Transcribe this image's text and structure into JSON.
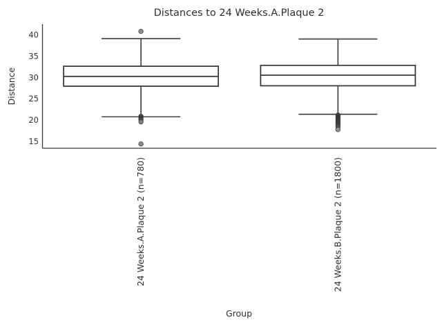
{
  "figure": {
    "background": "#ffffff",
    "text_color": "#2f2f2f",
    "line_color": "#3b3b3b"
  },
  "chart_data": {
    "type": "boxplot",
    "title": "Distances to 24 Weeks.A.Plaque 2",
    "xlabel": "Group",
    "ylabel": "Distance",
    "ylim": [
      13.4,
      42.6
    ],
    "yticks": [
      15,
      20,
      25,
      30,
      35,
      40
    ],
    "grid": false,
    "legend": null,
    "box_fill": "#ffffff",
    "box_edge_color": "#3b3b3b",
    "groups": [
      {
        "label": "24 Weeks.A.Plaque 2 (n=780)",
        "n": 780,
        "q1": 28.0,
        "median": 30.3,
        "q3": 32.7,
        "whisker_low": 20.8,
        "whisker_high": 39.2,
        "outliers": [
          {
            "value": 40.9,
            "color": "#8e8e8e"
          },
          {
            "value": 20.9,
            "color": "#4a4a4a"
          },
          {
            "value": 20.5,
            "color": "#3d3d3d"
          },
          {
            "value": 20.1,
            "color": "#474747"
          },
          {
            "value": 19.6,
            "color": "#7d7d7d"
          },
          {
            "value": 14.4,
            "color": "#8e8e8e"
          }
        ]
      },
      {
        "label": "24 Weeks.B.Plaque 2 (n=1800)",
        "n": 1800,
        "q1": 28.1,
        "median": 30.6,
        "q3": 32.9,
        "whisker_low": 21.4,
        "whisker_high": 39.1,
        "outliers": [
          {
            "value": 21.2,
            "color": "#3d3d3d"
          },
          {
            "value": 20.8,
            "color": "#343434"
          },
          {
            "value": 20.4,
            "color": "#343434"
          },
          {
            "value": 20.0,
            "color": "#383838"
          },
          {
            "value": 19.6,
            "color": "#3d3d3d"
          },
          {
            "value": 19.2,
            "color": "#414141"
          },
          {
            "value": 18.8,
            "color": "#484848"
          },
          {
            "value": 18.4,
            "color": "#555555"
          },
          {
            "value": 17.8,
            "color": "#919191"
          }
        ]
      }
    ]
  }
}
